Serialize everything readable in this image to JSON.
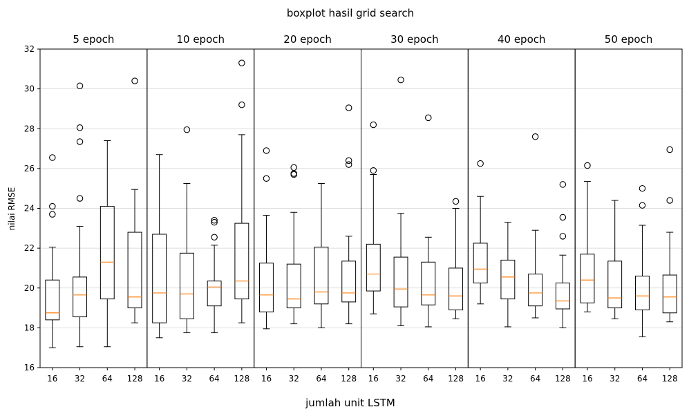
{
  "chart_data": {
    "type": "boxplot",
    "title": "boxplot hasil grid search",
    "xlabel": "jumlah unit LSTM",
    "ylabel": "nilai RMSE",
    "ylim": [
      16,
      32
    ],
    "yticks": [
      "16",
      "18",
      "20",
      "22",
      "24",
      "26",
      "28",
      "30",
      "32"
    ],
    "grid": "horizontal",
    "colors": {
      "box": "#000000",
      "median": "#ff7f0e",
      "grid": "#d3d3d3"
    },
    "panels": [
      {
        "title": "5 epoch",
        "boxes": [
          {
            "label": "16",
            "min": 17.0,
            "q1": 18.4,
            "median": 18.75,
            "q3": 20.4,
            "max": 22.05,
            "outliers": [
              26.55,
              24.1,
              23.7
            ]
          },
          {
            "label": "32",
            "min": 17.05,
            "q1": 18.55,
            "median": 19.65,
            "q3": 20.55,
            "max": 23.1,
            "outliers": [
              30.15,
              28.05,
              27.35,
              24.5
            ]
          },
          {
            "label": "64",
            "min": 17.05,
            "q1": 19.45,
            "median": 21.3,
            "q3": 24.1,
            "max": 27.4,
            "outliers": []
          },
          {
            "label": "128",
            "min": 18.25,
            "q1": 19.0,
            "median": 19.55,
            "q3": 22.8,
            "max": 24.95,
            "outliers": [
              30.4
            ]
          }
        ]
      },
      {
        "title": "10 epoch",
        "boxes": [
          {
            "label": "16",
            "min": 17.5,
            "q1": 18.25,
            "median": 19.75,
            "q3": 22.7,
            "max": 26.7,
            "outliers": []
          },
          {
            "label": "32",
            "min": 17.75,
            "q1": 18.45,
            "median": 19.7,
            "q3": 21.75,
            "max": 25.25,
            "outliers": [
              27.95
            ]
          },
          {
            "label": "64",
            "min": 17.75,
            "q1": 19.1,
            "median": 20.05,
            "q3": 20.35,
            "max": 22.15,
            "outliers": [
              23.4,
              23.3,
              22.55
            ]
          },
          {
            "label": "128",
            "min": 18.25,
            "q1": 19.45,
            "median": 20.35,
            "q3": 23.25,
            "max": 27.7,
            "outliers": [
              31.3,
              29.2
            ]
          }
        ]
      },
      {
        "title": "20 epoch",
        "boxes": [
          {
            "label": "16",
            "min": 17.95,
            "q1": 18.8,
            "median": 19.65,
            "q3": 21.25,
            "max": 23.65,
            "outliers": [
              26.9,
              25.5
            ]
          },
          {
            "label": "32",
            "min": 18.2,
            "q1": 19.0,
            "median": 19.45,
            "q3": 21.2,
            "max": 23.8,
            "outliers": [
              26.05,
              25.75,
              25.7
            ]
          },
          {
            "label": "64",
            "min": 18.0,
            "q1": 19.2,
            "median": 19.8,
            "q3": 22.05,
            "max": 25.25,
            "outliers": []
          },
          {
            "label": "128",
            "min": 18.2,
            "q1": 19.3,
            "median": 19.75,
            "q3": 21.35,
            "max": 22.6,
            "outliers": [
              29.05,
              26.4,
              26.2
            ]
          }
        ]
      },
      {
        "title": "30 epoch",
        "boxes": [
          {
            "label": "16",
            "min": 18.7,
            "q1": 19.85,
            "median": 20.7,
            "q3": 22.2,
            "max": 25.7,
            "outliers": [
              28.2,
              25.9
            ]
          },
          {
            "label": "32",
            "min": 18.1,
            "q1": 19.05,
            "median": 19.95,
            "q3": 21.55,
            "max": 23.75,
            "outliers": [
              30.45
            ]
          },
          {
            "label": "64",
            "min": 18.05,
            "q1": 19.15,
            "median": 19.65,
            "q3": 21.3,
            "max": 22.55,
            "outliers": [
              28.55
            ]
          },
          {
            "label": "128",
            "min": 18.45,
            "q1": 18.9,
            "median": 19.6,
            "q3": 21.0,
            "max": 24.0,
            "outliers": [
              24.35
            ]
          }
        ]
      },
      {
        "title": "40 epoch",
        "boxes": [
          {
            "label": "16",
            "min": 19.2,
            "q1": 20.25,
            "median": 20.95,
            "q3": 22.25,
            "max": 24.6,
            "outliers": [
              26.25
            ]
          },
          {
            "label": "32",
            "min": 18.05,
            "q1": 19.45,
            "median": 20.55,
            "q3": 21.4,
            "max": 23.3,
            "outliers": []
          },
          {
            "label": "64",
            "min": 18.5,
            "q1": 19.1,
            "median": 19.75,
            "q3": 20.7,
            "max": 22.9,
            "outliers": [
              27.6
            ]
          },
          {
            "label": "128",
            "min": 18.0,
            "q1": 18.95,
            "median": 19.35,
            "q3": 20.25,
            "max": 21.65,
            "outliers": [
              25.2,
              23.55,
              22.6
            ]
          }
        ]
      },
      {
        "title": "50 epoch",
        "boxes": [
          {
            "label": "16",
            "min": 18.8,
            "q1": 19.25,
            "median": 20.4,
            "q3": 21.7,
            "max": 25.35,
            "outliers": [
              26.15
            ]
          },
          {
            "label": "32",
            "min": 18.45,
            "q1": 19.0,
            "median": 19.5,
            "q3": 21.35,
            "max": 24.4,
            "outliers": []
          },
          {
            "label": "64",
            "min": 17.55,
            "q1": 18.9,
            "median": 19.6,
            "q3": 20.6,
            "max": 23.15,
            "outliers": [
              25.0,
              24.15
            ]
          },
          {
            "label": "128",
            "min": 18.3,
            "q1": 18.75,
            "median": 19.55,
            "q3": 20.65,
            "max": 22.8,
            "outliers": [
              26.95,
              24.4
            ]
          }
        ]
      }
    ]
  }
}
